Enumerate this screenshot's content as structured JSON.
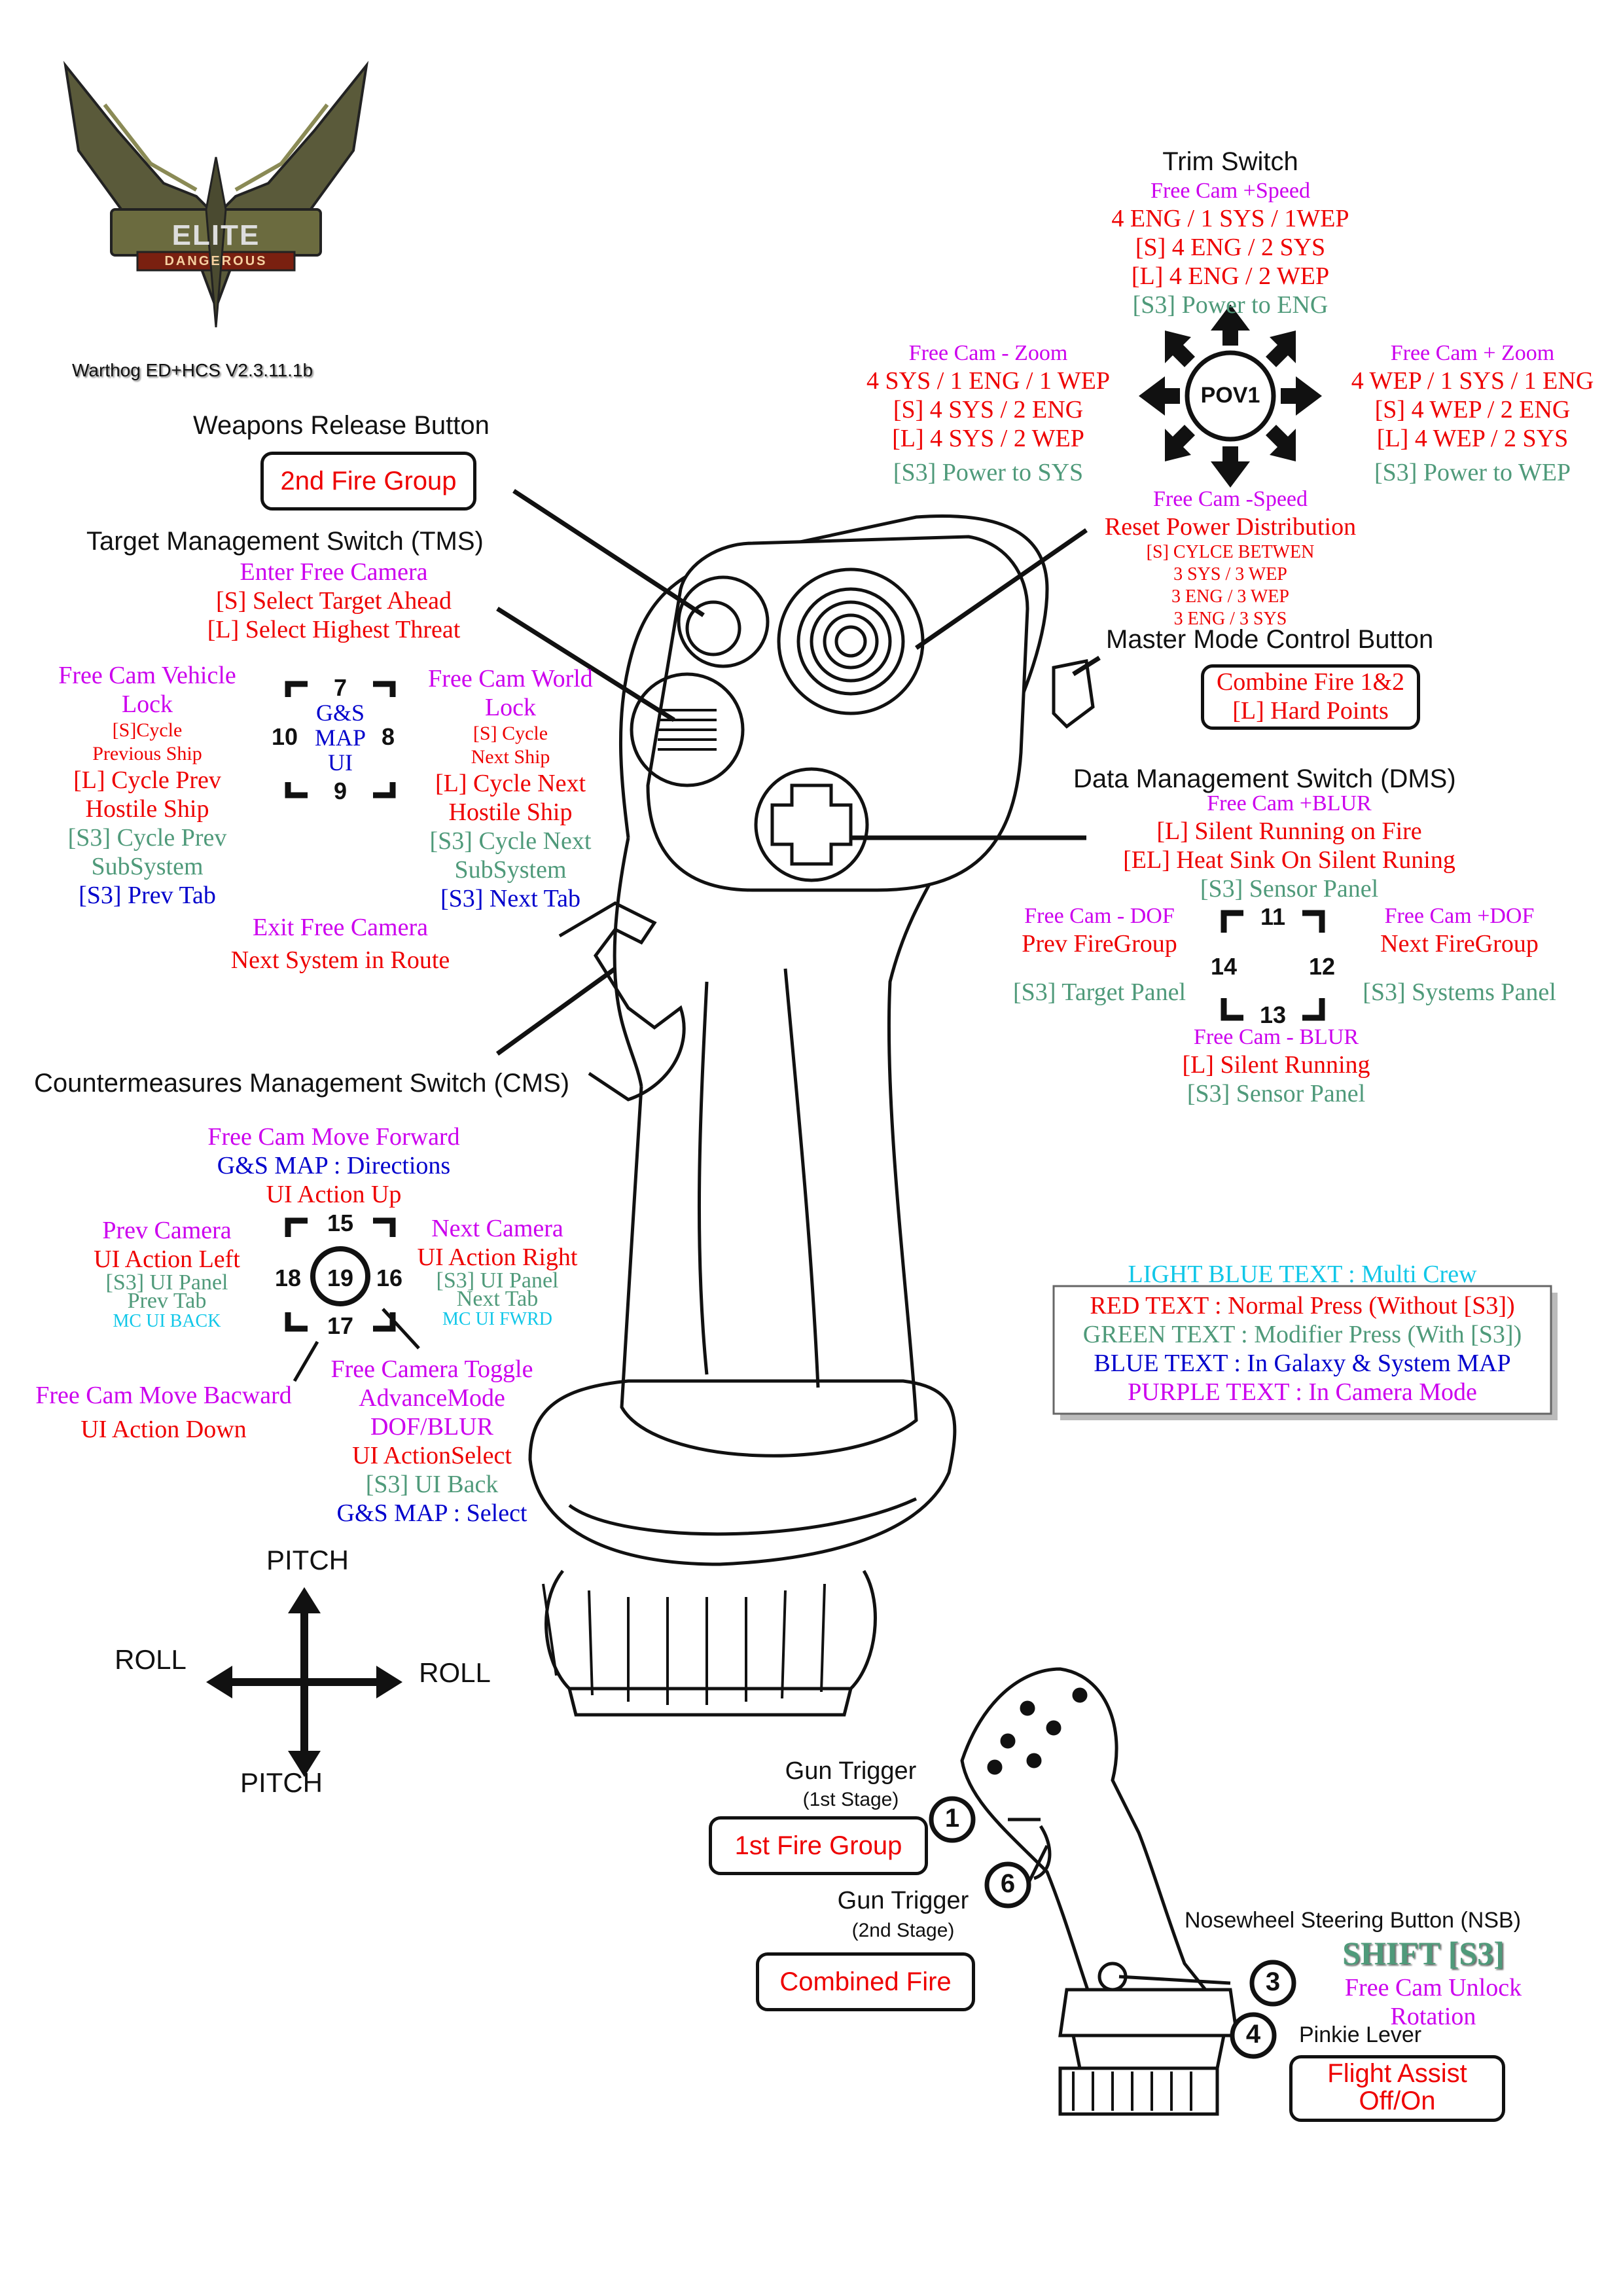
{
  "logo": {
    "word1": "ELITE",
    "word2": "DANGEROUS",
    "version": "Warthog ED+HCS V2.3.11.1b"
  },
  "weapons_release": {
    "title": "Weapons Release Button",
    "box": "2nd Fire Group"
  },
  "tms": {
    "title": "Target Management Switch (TMS)",
    "lines": [
      "Enter Free Camera",
      "[S] Select Target Ahead",
      "[L] Select Highest Threat"
    ],
    "left": [
      "Free Cam Vehicle",
      "Lock",
      "[S]Cycle",
      "Previous Ship",
      "[L] Cycle Prev",
      "Hostile Ship",
      "[S3] Cycle Prev",
      "SubSystem",
      "[S3] Prev Tab"
    ],
    "right": [
      "Free Cam World",
      "Lock",
      "[S] Cycle",
      "Next Ship",
      "[L] Cycle Next",
      "Hostile Ship",
      "[S3] Cycle Next",
      "SubSystem",
      "[S3] Next Tab"
    ],
    "grid": {
      "top": "7",
      "left": "10",
      "right": "8",
      "bottom": "9",
      "center": [
        "G&S",
        "MAP",
        "UI"
      ]
    }
  },
  "exit_cam": [
    "Exit Free Camera",
    "Next System in Route"
  ],
  "trim": {
    "title": "Trim Switch",
    "up": [
      "Free Cam +Speed",
      "4 ENG / 1 SYS / 1WEP",
      "[S] 4 ENG / 2 SYS",
      "[L] 4 ENG / 2 WEP",
      "[S3] Power to ENG"
    ],
    "left": [
      "Free Cam - Zoom",
      "4 SYS / 1 ENG / 1 WEP",
      "[S] 4 SYS / 2 ENG",
      "[L] 4 SYS / 2 WEP",
      "[S3] Power to SYS"
    ],
    "right": [
      "Free Cam + Zoom",
      "4 WEP / 1 SYS / 1 ENG",
      "[S] 4 WEP / 2 ENG",
      "[L] 4 WEP / 2 SYS",
      "[S3] Power to WEP"
    ],
    "down": [
      "Free Cam -Speed",
      "Reset Power Distribution",
      "[S] CYLCE BETWEN",
      "3 SYS / 3 WEP",
      "3 ENG / 3 WEP",
      "3 ENG / 3 SYS"
    ],
    "hat": "POV1"
  },
  "mmcb": {
    "title": "Master Mode Control Button",
    "box": [
      "Combine Fire 1&2",
      "[L] Hard  Points"
    ]
  },
  "dms": {
    "title": "Data Management Switch (DMS)",
    "up": [
      "Free Cam +BLUR",
      "[L] Silent Running on Fire",
      "[EL] Heat Sink On Silent Runing",
      "[S3] Sensor Panel"
    ],
    "left": [
      "Free Cam - DOF",
      "Prev FireGroup",
      "[S3] Target Panel"
    ],
    "right": [
      "Free Cam +DOF",
      "Next FireGroup",
      "[S3] Systems Panel"
    ],
    "down": [
      "Free Cam - BLUR",
      "[L] Silent Running",
      "[S3] Sensor Panel"
    ],
    "grid": {
      "top": "11",
      "left": "14",
      "right": "12",
      "bottom": "13"
    }
  },
  "cms": {
    "title": "Countermeasures Management Switch (CMS)",
    "up": [
      "Free Cam Move Forward",
      "G&S MAP : Directions",
      "UI Action Up"
    ],
    "left": [
      "Prev Camera",
      "UI Action Left",
      "[S3] UI Panel",
      "Prev Tab",
      "MC UI BACK"
    ],
    "right": [
      "Next Camera",
      "UI Action Right",
      "[S3] UI Panel",
      "Next Tab",
      "MC UI FWRD"
    ],
    "down": [
      "Free Cam Move Bacward",
      "UI Action Down"
    ],
    "press": [
      "Free Camera Toggle",
      "AdvanceMode",
      "DOF/BLUR",
      "UI ActionSelect",
      "[S3] UI Back",
      "G&S MAP : Select"
    ],
    "grid": {
      "top": "15",
      "left": "18",
      "right": "16",
      "bottom": "17",
      "center": "19"
    }
  },
  "legend": [
    {
      "text": "LIGHT BLUE TEXT : Multi Crew",
      "color": "#11c7e8"
    },
    {
      "text": "RED TEXT : Normal Press (Without [S3])",
      "color": "#ee0000"
    },
    {
      "text": "GREEN TEXT : Modifier Press (With [S3])",
      "color": "#4f9a7a"
    },
    {
      "text": "BLUE TEXT : In Galaxy & System MAP",
      "color": "#0000cc"
    },
    {
      "text": "PURPLE TEXT : In Camera Mode",
      "color": "#cc00ee"
    }
  ],
  "axes": {
    "up": "PITCH",
    "down": "PITCH",
    "left": "ROLL",
    "right": "ROLL"
  },
  "trigger": {
    "t1_title": "Gun Trigger",
    "t1_sub": "(1st Stage)",
    "t1_box": "1st Fire Group",
    "t2_title": "Gun Trigger",
    "t2_sub": "(2nd Stage)",
    "t2_box": "Combined Fire",
    "n1": "1",
    "n6": "6",
    "n3": "3",
    "n4": "4"
  },
  "nsb": {
    "title": "Nosewheel Steering Button (NSB)",
    "shift": "SHIFT  [S3]",
    "lines": [
      "Free Cam Unlock",
      "Rotation"
    ]
  },
  "pinkie": {
    "title": "Pinkie Lever",
    "box": [
      "Flight Assist",
      "Off/On"
    ]
  }
}
